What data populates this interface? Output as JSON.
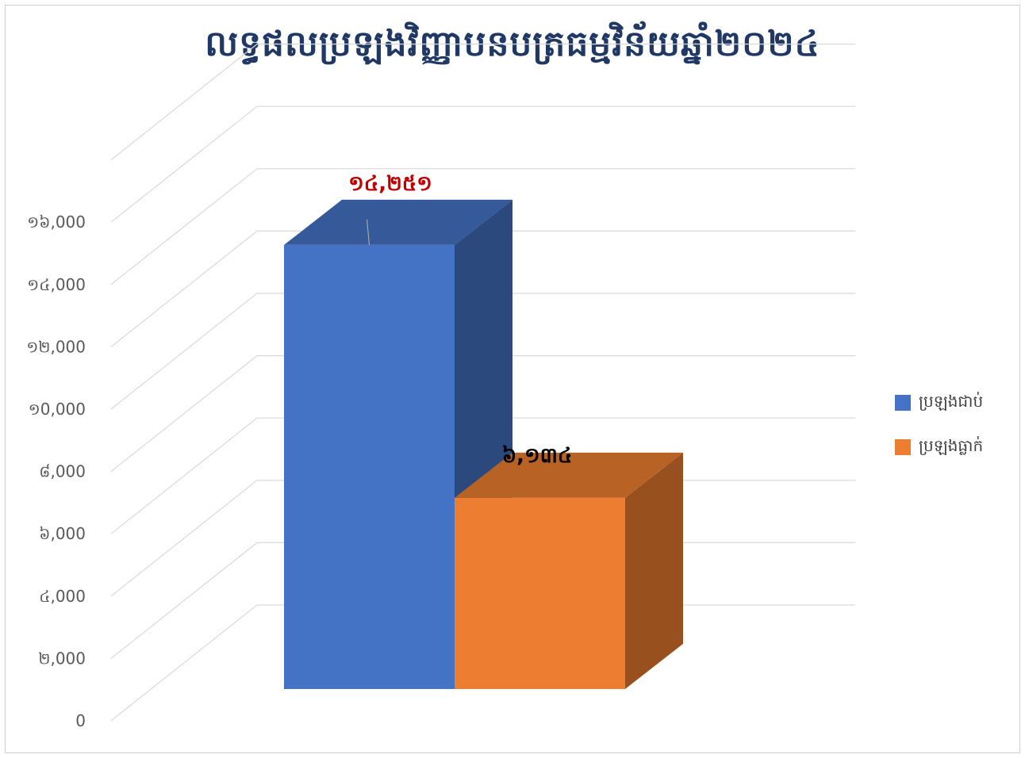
{
  "chart_data": {
    "type": "bar",
    "title": "លទ្ធផលប្រឡងវិញ្ញាបនបត្រធម្មវិន័យឆ្នាំ២០២៤",
    "categories": [
      ""
    ],
    "series": [
      {
        "name": "ប្រឡងជាប់",
        "values": [
          14251
        ],
        "data_label": "១៤,២៥១",
        "color": "#4472c4",
        "label_color": "#c00000"
      },
      {
        "name": "ប្រឡងធ្លាក់",
        "values": [
          6134
        ],
        "data_label": "៦,១៣៤",
        "color": "#ed7d31",
        "label_color": "#000000"
      }
    ],
    "ylim": [
      0,
      18000
    ],
    "yticks": [
      0,
      2000,
      4000,
      6000,
      8000,
      10000,
      12000,
      14000,
      16000
    ],
    "ytick_labels": [
      "0",
      "២,000",
      "៤,000",
      "៦,000",
      "៨,000",
      "១0,000",
      "១២,000",
      "១៤,000",
      "១៦,000"
    ],
    "legend_position": "right",
    "grid": true,
    "style": "3d-column"
  }
}
